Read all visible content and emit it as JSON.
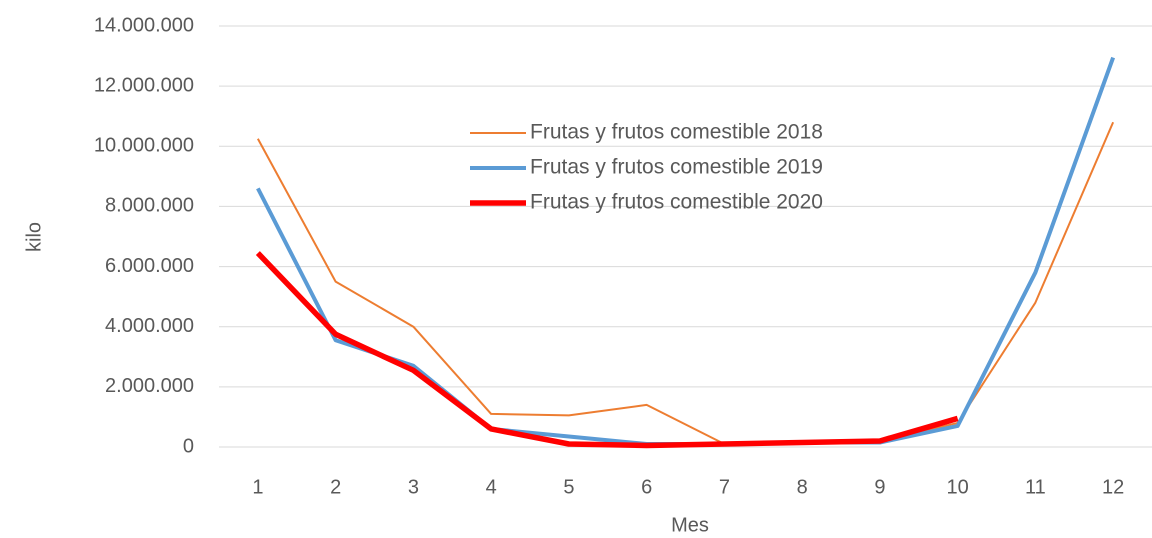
{
  "chart_data": {
    "type": "line",
    "x_label": "Mes",
    "y_label": "kilo",
    "categories": [
      "1",
      "2",
      "3",
      "4",
      "5",
      "6",
      "7",
      "8",
      "9",
      "10",
      "11",
      "12"
    ],
    "series": [
      {
        "name": "Frutas y frutos comestible 2018",
        "color": "#ed7d31",
        "values": [
          10250000,
          5500000,
          4000000,
          1100000,
          1050000,
          1400000,
          100000,
          150000,
          200000,
          800000,
          4800000,
          10800000
        ]
      },
      {
        "name": "Frutas y frutos comestible 2019",
        "color": "#5b9bd5",
        "values": [
          8600000,
          3550000,
          2700000,
          600000,
          350000,
          100000,
          100000,
          150000,
          150000,
          700000,
          5800000,
          12950000
        ]
      },
      {
        "name": "Frutas y frutos comestible 2020",
        "color": "#ff0000",
        "values": [
          6450000,
          3750000,
          2550000,
          600000,
          100000,
          50000,
          100000,
          150000,
          200000,
          950000,
          null,
          null
        ]
      }
    ],
    "ylim": [
      0,
      14000000
    ],
    "yticks": [
      0,
      {
        "value": 2000000,
        "label": "2.000.000"
      },
      {
        "value": 4000000,
        "label": "4.000.000"
      },
      {
        "value": 6000000,
        "label": "6.000.000"
      },
      {
        "value": 8000000,
        "label": "8.000.000"
      },
      {
        "value": 10000000,
        "label": "10.000.000"
      },
      {
        "value": 12000000,
        "label": "12.000.000"
      },
      {
        "value": 14000000,
        "label": "14.000.000"
      }
    ],
    "grid": true,
    "legend": "upper center"
  }
}
